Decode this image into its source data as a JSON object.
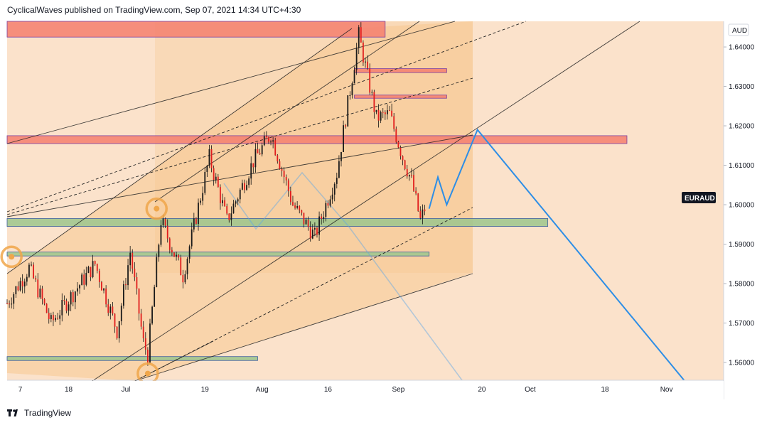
{
  "header": {
    "text": "CyclicalWaves published on TradingView.com, Sep 07, 2021 14:34 UTC+4:30"
  },
  "footer": {
    "brand": "TradingView"
  },
  "colors": {
    "background": "#fbe2cb",
    "candle": "#e11d1d",
    "wick": "#111111",
    "resistance_zone": "#f47f6f",
    "support_zone": "#9cc58d",
    "projection": "#2d8ee6",
    "channel_fill": "#f7c992",
    "circle_marker": "#f0a64a"
  },
  "chart_data": {
    "type": "candlestick",
    "symbol": "EURAUD",
    "currency": "AUD",
    "y_ticks": [
      "1.56000",
      "1.57000",
      "1.58000",
      "1.59000",
      "1.60000",
      "1.61000",
      "1.62000",
      "1.63000",
      "1.64000"
    ],
    "y_range": [
      1.5555,
      1.6465
    ],
    "x_ticks": [
      "7",
      "18",
      "Jul",
      "19",
      "Aug",
      "16",
      "Sep",
      "20",
      "Oct",
      "18",
      "Nov"
    ],
    "x_range": [
      "2021-06-04",
      "2021-11-14"
    ],
    "series": [
      {
        "name": "EURAUD",
        "key_points": [
          {
            "date": "2021-06-04",
            "price": 1.575
          },
          {
            "date": "2021-06-09",
            "price": 1.584
          },
          {
            "date": "2021-06-14",
            "price": 1.57
          },
          {
            "date": "2021-06-18",
            "price": 1.576
          },
          {
            "date": "2021-06-24",
            "price": 1.585
          },
          {
            "date": "2021-06-29",
            "price": 1.568
          },
          {
            "date": "2021-07-02",
            "price": 1.588
          },
          {
            "date": "2021-07-05",
            "price": 1.565
          },
          {
            "date": "2021-07-06",
            "price": 1.562
          },
          {
            "date": "2021-07-09",
            "price": 1.596
          },
          {
            "date": "2021-07-14",
            "price": 1.582
          },
          {
            "date": "2021-07-20",
            "price": 1.612
          },
          {
            "date": "2021-07-24",
            "price": 1.596
          },
          {
            "date": "2021-07-30",
            "price": 1.611
          },
          {
            "date": "2021-08-03",
            "price": 1.618
          },
          {
            "date": "2021-08-08",
            "price": 1.6
          },
          {
            "date": "2021-08-13",
            "price": 1.592
          },
          {
            "date": "2021-08-18",
            "price": 1.608
          },
          {
            "date": "2021-08-22",
            "price": 1.636
          },
          {
            "date": "2021-08-23",
            "price": 1.643
          },
          {
            "date": "2021-08-27",
            "price": 1.622
          },
          {
            "date": "2021-08-30",
            "price": 1.623
          },
          {
            "date": "2021-09-02",
            "price": 1.612
          },
          {
            "date": "2021-09-04",
            "price": 1.606
          },
          {
            "date": "2021-09-06",
            "price": 1.596
          },
          {
            "date": "2021-09-07",
            "price": 1.599
          }
        ]
      },
      {
        "name": "projection",
        "points": [
          {
            "date": "2021-09-08",
            "price": 1.599
          },
          {
            "date": "2021-09-10",
            "price": 1.607
          },
          {
            "date": "2021-09-12",
            "price": 1.6
          },
          {
            "date": "2021-09-19",
            "price": 1.619
          },
          {
            "date": "2021-11-05",
            "price": 1.5555
          }
        ]
      }
    ],
    "zones": [
      {
        "type": "resistance",
        "from": "2021-06-04",
        "to": "2021-08-29",
        "low": 1.6425,
        "high": 1.6465
      },
      {
        "type": "resistance",
        "from": "2021-08-22",
        "to": "2021-09-12",
        "low": 1.6335,
        "high": 1.6345
      },
      {
        "type": "resistance",
        "from": "2021-08-22",
        "to": "2021-09-12",
        "low": 1.627,
        "high": 1.6278
      },
      {
        "type": "resistance",
        "from": "2021-06-04",
        "to": "2021-10-23",
        "low": 1.6155,
        "high": 1.6175
      },
      {
        "type": "support",
        "from": "2021-06-04",
        "to": "2021-10-05",
        "low": 1.5945,
        "high": 1.5965
      },
      {
        "type": "support",
        "from": "2021-06-04",
        "to": "2021-09-08",
        "low": 1.587,
        "high": 1.588
      },
      {
        "type": "support",
        "from": "2021-06-04",
        "to": "2021-07-31",
        "low": 1.5605,
        "high": 1.5615
      }
    ],
    "grid": false
  }
}
